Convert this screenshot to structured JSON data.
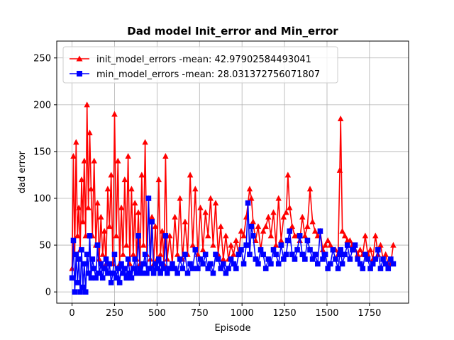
{
  "chart_data": {
    "type": "line",
    "title": "Dad model Init_error and Min_error",
    "xlabel": "Episode",
    "ylabel": "dad error",
    "xlim": [
      -90,
      1980
    ],
    "ylim": [
      -12,
      268
    ],
    "xticks": [
      0,
      250,
      500,
      750,
      1000,
      1250,
      1500,
      1750
    ],
    "yticks": [
      0,
      50,
      100,
      150,
      200,
      250
    ],
    "grid": true,
    "legend_location": "upper-left",
    "series": [
      {
        "name": "init_model_errors",
        "legend_label": "init_model_errors -mean: 42.97902584493041",
        "color": "#ff0000",
        "marker": "triangle",
        "mean": 42.97902584493041,
        "x": [
          0,
          8,
          16,
          24,
          32,
          40,
          48,
          56,
          64,
          72,
          80,
          88,
          96,
          104,
          112,
          120,
          130,
          140,
          150,
          160,
          170,
          180,
          190,
          200,
          210,
          220,
          230,
          240,
          250,
          260,
          270,
          280,
          290,
          300,
          310,
          320,
          330,
          340,
          350,
          360,
          370,
          380,
          390,
          400,
          410,
          420,
          430,
          440,
          450,
          460,
          470,
          480,
          490,
          500,
          510,
          520,
          530,
          540,
          550,
          560,
          575,
          590,
          605,
          620,
          635,
          650,
          665,
          680,
          695,
          710,
          725,
          740,
          755,
          770,
          785,
          800,
          815,
          830,
          845,
          860,
          875,
          890,
          905,
          920,
          935,
          950,
          965,
          980,
          995,
          1010,
          1025,
          1035,
          1045,
          1055,
          1065,
          1080,
          1095,
          1110,
          1125,
          1140,
          1155,
          1170,
          1185,
          1200,
          1215,
          1230,
          1245,
          1260,
          1270,
          1280,
          1295,
          1310,
          1325,
          1340,
          1355,
          1370,
          1385,
          1400,
          1415,
          1430,
          1445,
          1460,
          1475,
          1490,
          1505,
          1520,
          1535,
          1550,
          1565,
          1575,
          1580,
          1590,
          1605,
          1620,
          1635,
          1650,
          1665,
          1680,
          1695,
          1710,
          1725,
          1740,
          1755,
          1770,
          1785,
          1800,
          1815,
          1830,
          1845,
          1860,
          1875,
          1890
        ],
        "values": [
          25,
          145,
          40,
          160,
          60,
          90,
          45,
          120,
          75,
          140,
          60,
          200,
          90,
          170,
          110,
          60,
          140,
          50,
          95,
          35,
          80,
          40,
          65,
          30,
          110,
          70,
          125,
          30,
          190,
          60,
          140,
          30,
          90,
          40,
          120,
          50,
          145,
          30,
          110,
          40,
          95,
          35,
          85,
          30,
          125,
          50,
          160,
          40,
          100,
          35,
          80,
          30,
          70,
          35,
          120,
          40,
          65,
          30,
          145,
          35,
          60,
          30,
          80,
          40,
          100,
          35,
          75,
          40,
          125,
          50,
          110,
          40,
          90,
          45,
          85,
          60,
          100,
          50,
          95,
          40,
          70,
          35,
          60,
          35,
          50,
          40,
          55,
          40,
          65,
          60,
          80,
          95,
          110,
          100,
          75,
          55,
          70,
          45,
          65,
          70,
          80,
          60,
          85,
          50,
          100,
          55,
          80,
          85,
          125,
          90,
          70,
          60,
          60,
          55,
          80,
          60,
          70,
          110,
          75,
          65,
          60,
          65,
          45,
          50,
          55,
          50,
          45,
          45,
          40,
          130,
          185,
          65,
          60,
          55,
          55,
          50,
          45,
          40,
          45,
          40,
          60,
          40,
          45,
          35,
          60,
          40,
          50,
          35,
          40,
          30,
          30,
          50
        ]
      },
      {
        "name": "min_model_errors",
        "legend_label": "min_model_errors -mean: 28.031372756071807",
        "color": "#0000ff",
        "marker": "square",
        "mean": 28.031372756071807,
        "x": [
          0,
          8,
          16,
          24,
          32,
          40,
          48,
          56,
          64,
          72,
          80,
          88,
          96,
          104,
          112,
          120,
          130,
          140,
          150,
          160,
          170,
          180,
          190,
          200,
          210,
          220,
          230,
          240,
          250,
          260,
          270,
          280,
          290,
          300,
          310,
          320,
          330,
          340,
          350,
          360,
          370,
          380,
          390,
          400,
          410,
          420,
          430,
          440,
          450,
          460,
          470,
          480,
          490,
          500,
          510,
          520,
          530,
          540,
          550,
          560,
          575,
          590,
          605,
          620,
          635,
          650,
          665,
          680,
          695,
          710,
          725,
          740,
          755,
          770,
          785,
          800,
          815,
          830,
          845,
          860,
          875,
          890,
          905,
          920,
          935,
          950,
          965,
          980,
          995,
          1010,
          1025,
          1035,
          1045,
          1055,
          1065,
          1080,
          1095,
          1110,
          1125,
          1140,
          1155,
          1170,
          1185,
          1200,
          1215,
          1230,
          1245,
          1260,
          1270,
          1280,
          1295,
          1310,
          1325,
          1340,
          1355,
          1370,
          1385,
          1400,
          1415,
          1430,
          1445,
          1460,
          1475,
          1490,
          1505,
          1520,
          1535,
          1550,
          1565,
          1575,
          1580,
          1590,
          1605,
          1620,
          1635,
          1650,
          1665,
          1680,
          1695,
          1710,
          1725,
          1740,
          1755,
          1770,
          1785,
          1800,
          1815,
          1830,
          1845,
          1860,
          1875,
          1890
        ],
        "values": [
          15,
          55,
          0,
          40,
          10,
          35,
          0,
          45,
          5,
          30,
          0,
          40,
          20,
          60,
          15,
          35,
          25,
          15,
          50,
          20,
          30,
          15,
          25,
          35,
          20,
          30,
          10,
          20,
          40,
          15,
          25,
          10,
          30,
          20,
          25,
          15,
          35,
          20,
          15,
          25,
          35,
          20,
          60,
          25,
          20,
          30,
          40,
          20,
          100,
          25,
          75,
          20,
          30,
          25,
          35,
          20,
          30,
          25,
          60,
          20,
          25,
          30,
          25,
          20,
          35,
          25,
          40,
          20,
          30,
          25,
          45,
          25,
          35,
          30,
          40,
          25,
          30,
          20,
          40,
          35,
          25,
          30,
          20,
          25,
          35,
          30,
          25,
          40,
          45,
          30,
          50,
          95,
          40,
          70,
          60,
          35,
          30,
          45,
          40,
          25,
          35,
          30,
          45,
          40,
          30,
          50,
          35,
          40,
          55,
          65,
          40,
          35,
          45,
          60,
          40,
          35,
          55,
          45,
          35,
          40,
          30,
          65,
          35,
          40,
          25,
          30,
          45,
          35,
          25,
          40,
          45,
          30,
          40,
          50,
          35,
          45,
          50,
          35,
          30,
          25,
          40,
          35,
          25,
          30,
          35,
          45,
          25,
          35,
          30,
          25,
          35,
          30
        ]
      }
    ]
  }
}
